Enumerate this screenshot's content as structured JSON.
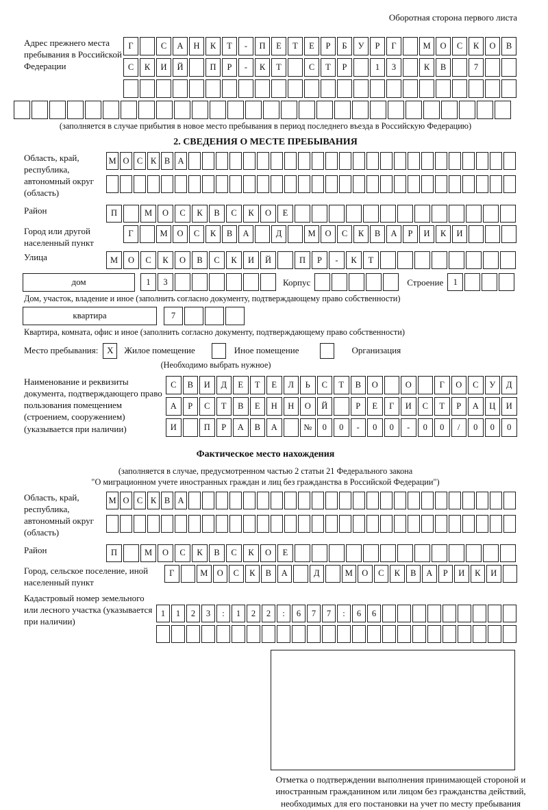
{
  "header_note": "Оборотная сторона первого листа",
  "prev_address": {
    "label": "Адрес прежнего места пребывания в Российской Федерации",
    "row1": "Г САНКТ-ПЕТЕРБУРГ МОСКОВ",
    "row2": "СКИЙ ПР-КТ СТР 13 КВ 7  ",
    "row3": "                        ",
    "row4": "                            ",
    "note": "(заполняется в случае прибытия в новое место пребывания в период последнего въезда в Российскую Федерацию)"
  },
  "section2": {
    "title": "2. СВЕДЕНИЯ О МЕСТЕ ПРЕБЫВАНИЯ",
    "region_label": "Область, край, республика, автономный округ (область)",
    "region_row1": "МОСКВА                        ",
    "region_row2": "                              ",
    "district_label": "Район",
    "district_row": "П МОСКВСКОЕ             ",
    "city_label": "Город или другой населенный пункт",
    "city_row": "Г МОСКВА Д МОСКВАРИКИ   ",
    "street_label": "Улица",
    "street_row": "МОСКОВСКИЙ ПР-КТ        ",
    "house_label": "дом",
    "house_cells": "13      ",
    "korpus_label": "Корпус",
    "korpus_cells": "     ",
    "stroenie_label": "Строение",
    "stroenie_cells": "1   ",
    "house_note": "Дом, участок, владение и иное (заполнить согласно документу, подтверждающему право собственности)",
    "apartment_label": "квартира",
    "apartment_cells": "7   ",
    "apartment_note": "Квартира, комната, офис и иное (заполнить согласно документу, подтверждающему право собственности)",
    "stay_label": "Место пребывания:",
    "stay_options": [
      {
        "mark": "X",
        "label": "Жилое помещение"
      },
      {
        "mark": "",
        "label": "Иное помещение"
      },
      {
        "mark": "",
        "label": "Организация"
      }
    ],
    "stay_note": "(Необходимо выбрать нужное)",
    "doc_label": "Наименование и реквизиты документа, подтверждающего право пользования помещением (строением, сооружением) (указывается при наличии)",
    "doc_row1": "СВИДЕТЕЛЬСТВО О ГОСУД",
    "doc_row2": "АРСТВЕННОЙ РЕГИСТРАЦИ",
    "doc_row3": "И ПРАВА №00-00-00/000"
  },
  "actual": {
    "title": "Фактическое место нахождения",
    "note1": "(заполняется в случае, предусмотренном частью 2 статьи 21 Федерального закона",
    "note2": "\"О миграционном учете иностранных граждан и лиц без гражданства в Российской Федерации\")",
    "region_label": "Область, край, республика, автономный округ (область)",
    "region_row1": "МОСКВА                        ",
    "region_row2": "                              ",
    "district_label": "Район",
    "district_row": "П МОСКВСКОЕ             ",
    "city_label": "Город, сельское поселение, иной населенный пункт",
    "city_row": "Г МОСКВА Д МОСКВАРИКИ ",
    "cadastral_label": "Кадастровый номер земельного или лесного участка (указывается при наличии)",
    "cadastral_row1": "1123:122:677:66         ",
    "cadastral_row2": "                        "
  },
  "stamp_caption": "Отметка о подтверждении выполнения принимающей стороной и иностранным гражданином или лицом без гражданства действий, необходимых для его постановки на учет по месту пребывания"
}
